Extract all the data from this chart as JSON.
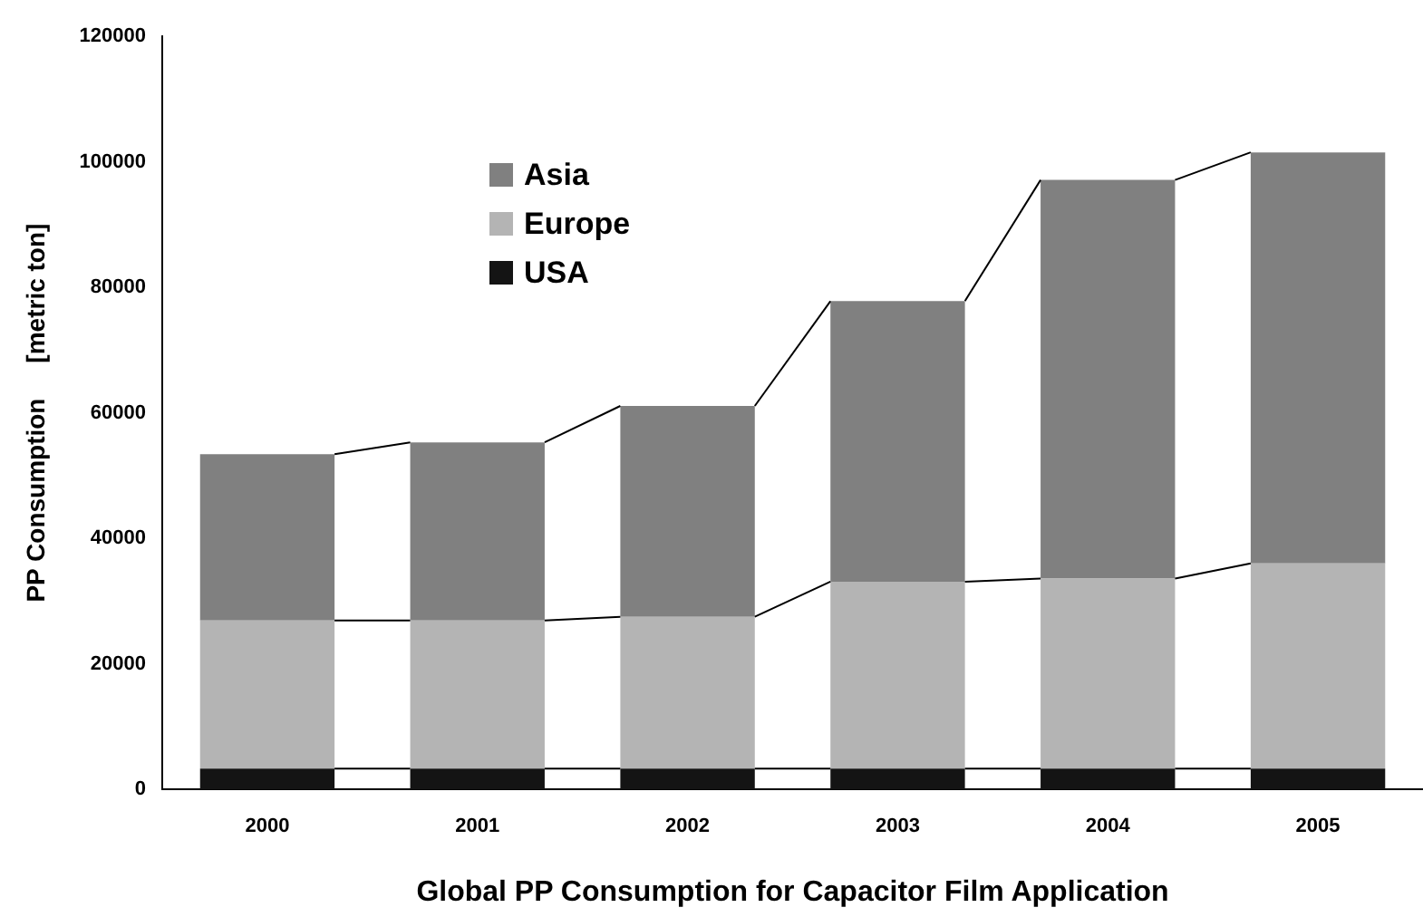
{
  "chart_data": {
    "type": "bar",
    "stacked": true,
    "xlabel": "Global PP Consumption for Capacitor Film Application",
    "ylabel": "PP Consumption     [metric ton]",
    "categories": [
      "2000",
      "2001",
      "2002",
      "2003",
      "2004",
      "2005"
    ],
    "series": [
      {
        "name": "USA",
        "color": "#141414",
        "values": [
          3300,
          3300,
          3300,
          3300,
          3300,
          3300
        ]
      },
      {
        "name": "Europe",
        "color": "#b4b4b4",
        "values": [
          23600,
          23600,
          24200,
          29800,
          30300,
          32700
        ]
      },
      {
        "name": "Asia",
        "color": "#808080",
        "values": [
          26500,
          28400,
          33600,
          44700,
          63500,
          65500
        ]
      }
    ],
    "ylim": [
      0,
      120000
    ],
    "yticks": [
      0,
      20000,
      40000,
      60000,
      80000,
      100000,
      120000
    ],
    "grid": false,
    "legend": "top left"
  }
}
